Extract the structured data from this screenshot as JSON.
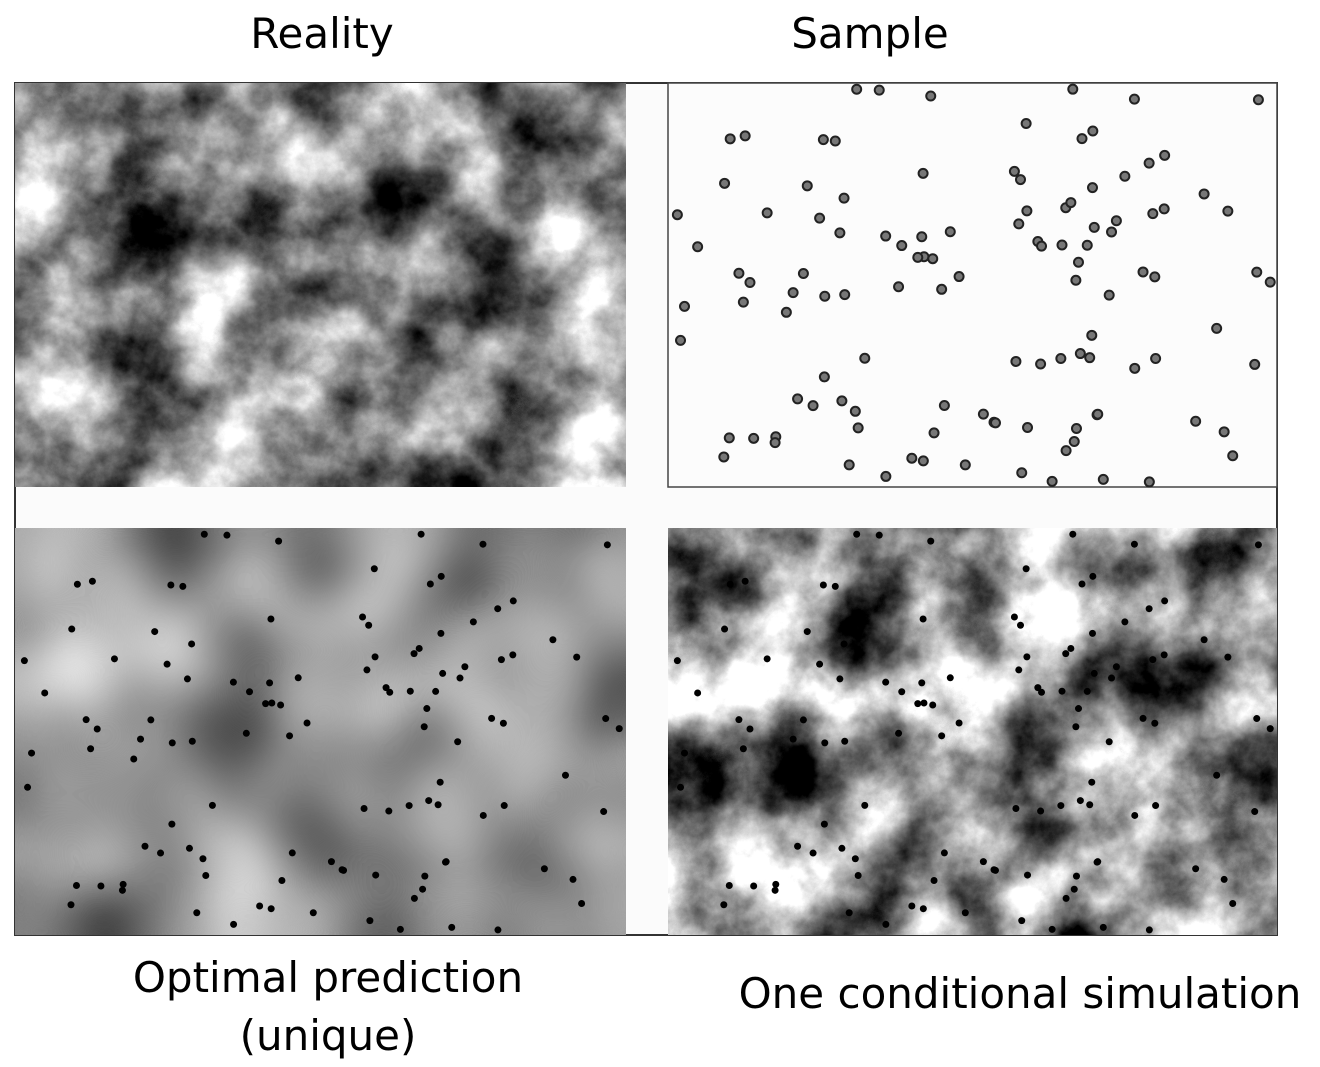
{
  "labels": {
    "reality": "Reality",
    "sample": "Sample",
    "prediction": [
      "Optimal prediction",
      "(unique)"
    ],
    "simulation": "One conditional simulation"
  }
}
